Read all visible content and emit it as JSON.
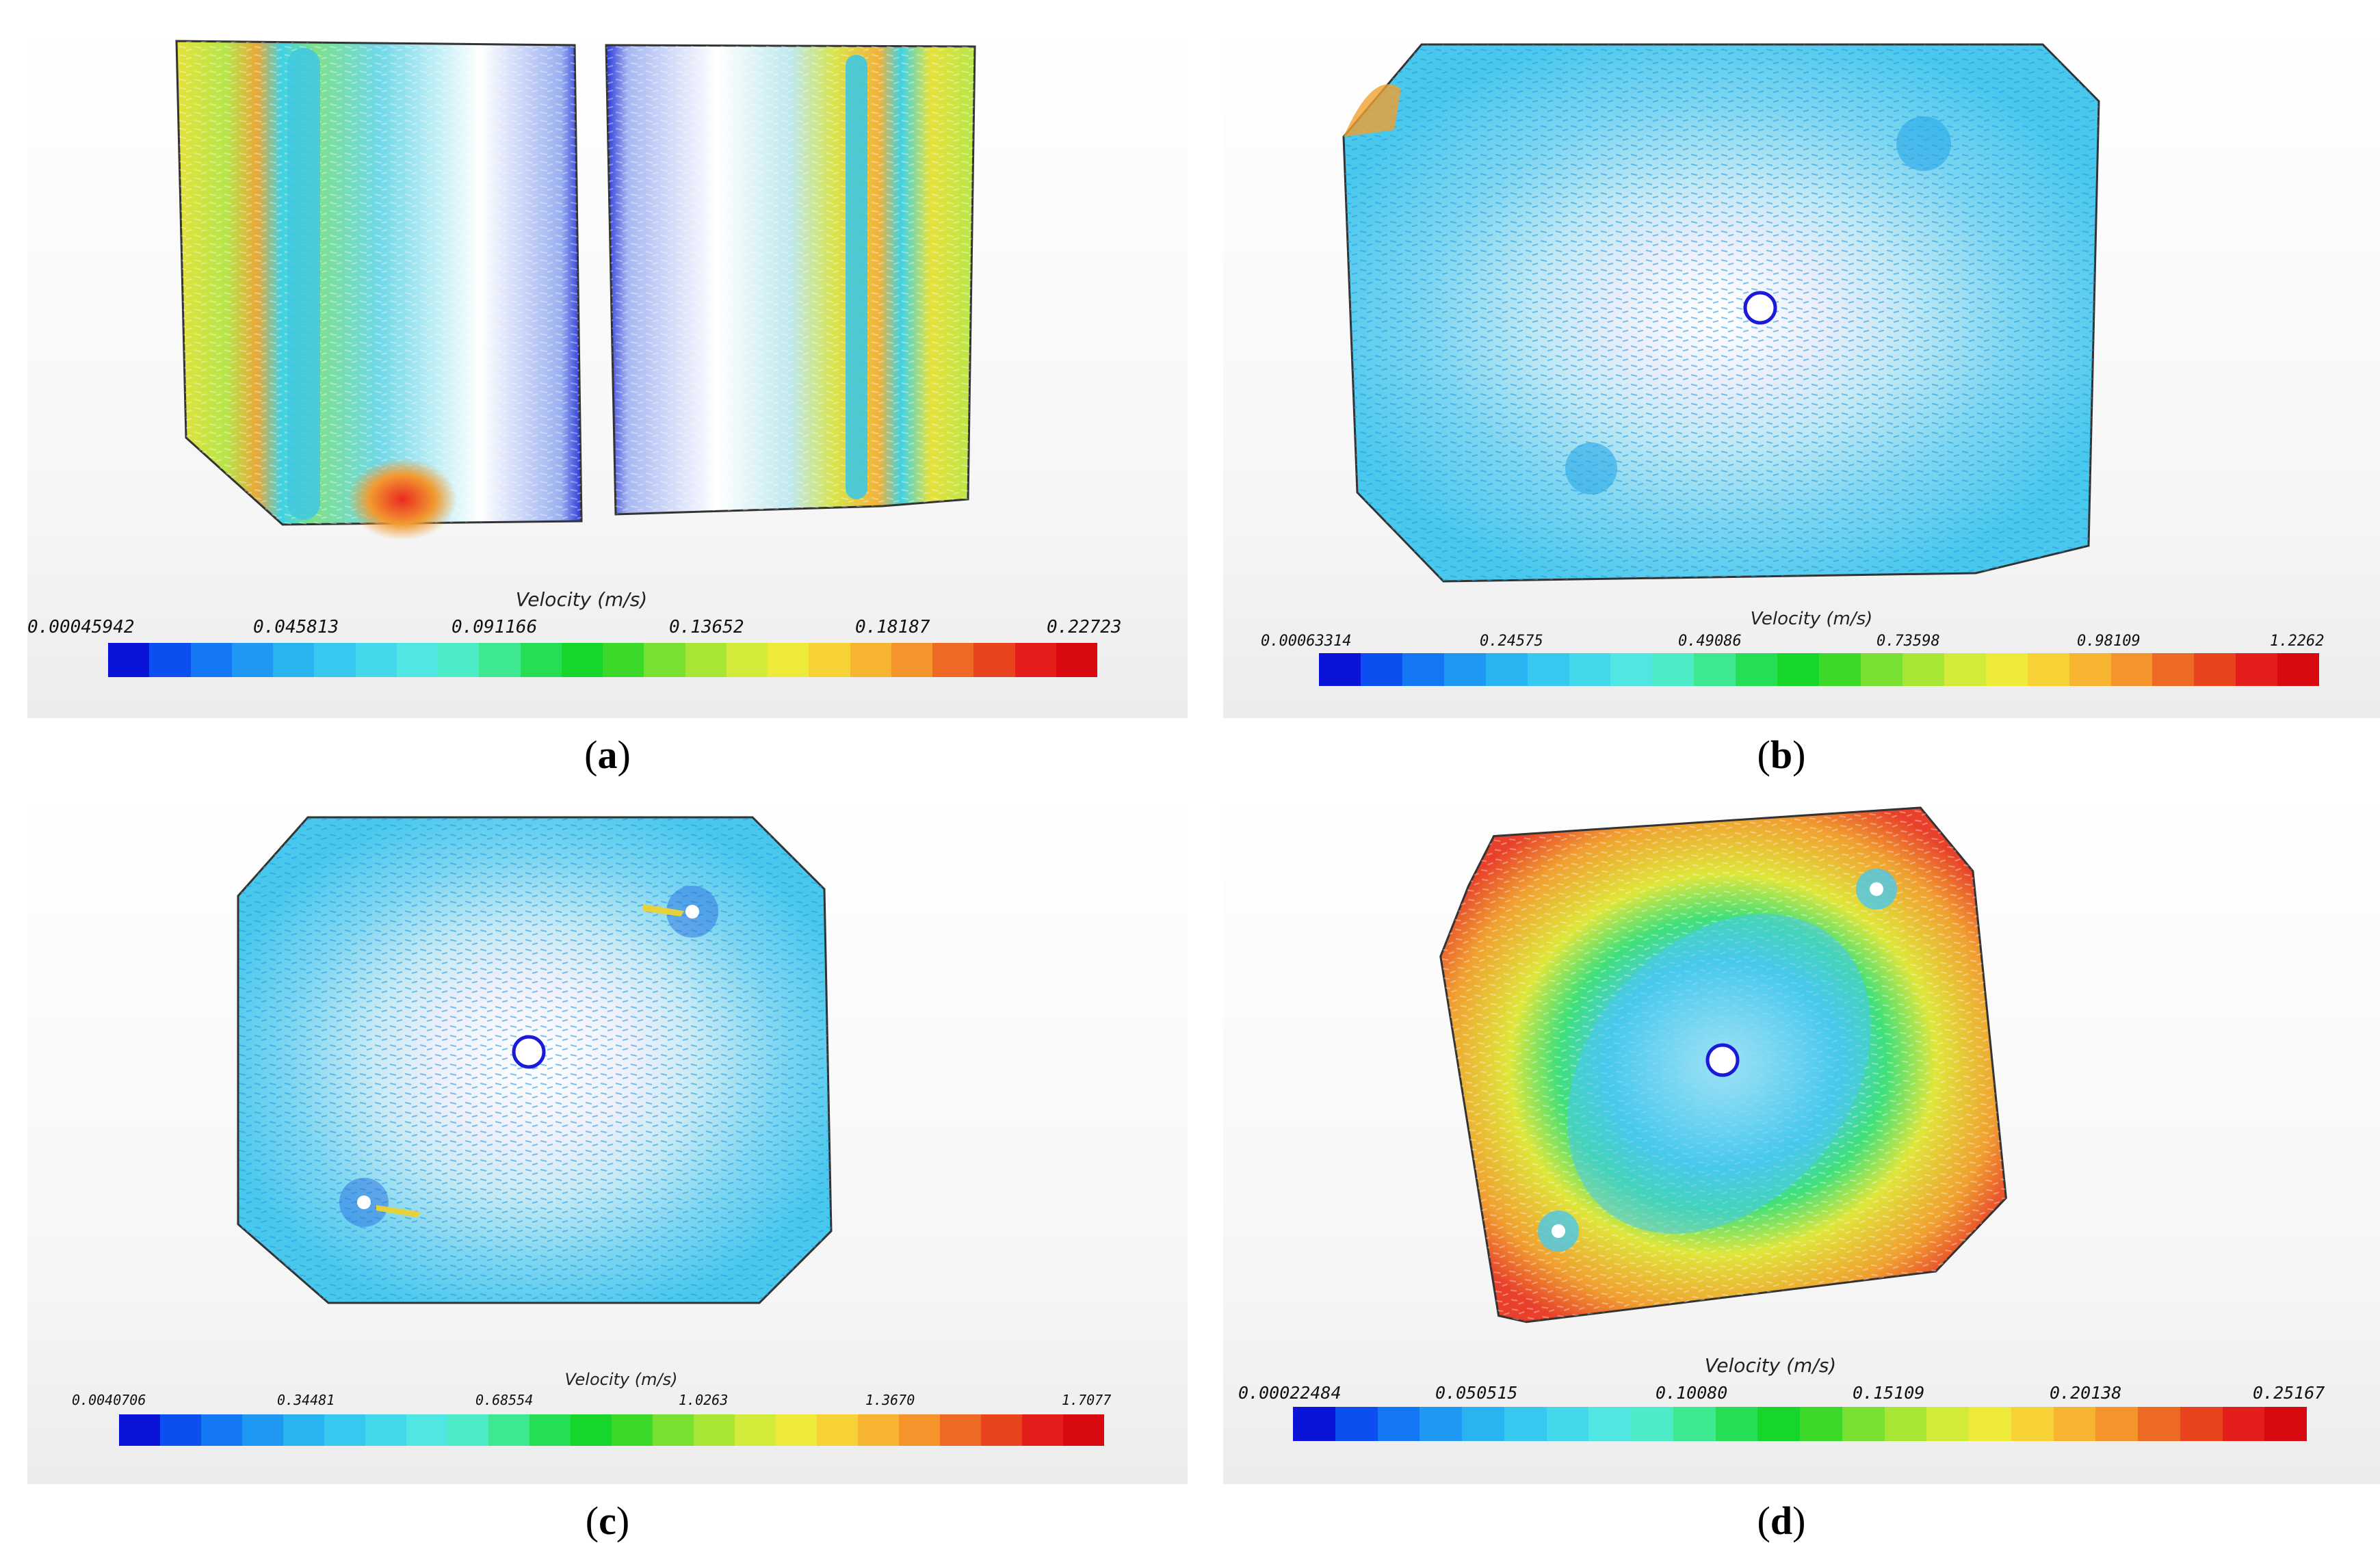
{
  "panels": [
    {
      "id": "a",
      "caption_letter": "a",
      "legend": {
        "title": "Velocity (m/s)",
        "ticks": [
          "0.00045942",
          "0.045813",
          "0.091166",
          "0.13652",
          "0.18187",
          "0.22723"
        ]
      },
      "field_colors": [
        "#3fd2e6",
        "#b7e64a",
        "#e6e23a",
        "#f2b23a",
        "#ea3a2a"
      ]
    },
    {
      "id": "b",
      "caption_letter": "b",
      "legend": {
        "title": "Velocity (m/s)",
        "ticks": [
          "0.00063314",
          "0.24575",
          "0.49086",
          "0.73598",
          "0.98109",
          "1.2262"
        ]
      },
      "field_colors": [
        "#49c8ee",
        "#1a1ad8"
      ]
    },
    {
      "id": "c",
      "caption_letter": "c",
      "legend": {
        "title": "Velocity (m/s)",
        "ticks": [
          "0.0040706",
          "0.34481",
          "0.68554",
          "1.0263",
          "1.3670",
          "1.7077"
        ]
      },
      "field_colors": [
        "#49c8ee",
        "#1a1ad8"
      ]
    },
    {
      "id": "d",
      "caption_letter": "d",
      "legend": {
        "title": "Velocity (m/s)",
        "ticks": [
          "0.00022484",
          "0.050515",
          "0.10080",
          "0.15109",
          "0.20138",
          "0.25167"
        ]
      },
      "field_colors": [
        "#49c8ee",
        "#3fe07a",
        "#dfe63a",
        "#f0a030",
        "#e8402a"
      ]
    }
  ],
  "colorbar_colors": [
    "#0a14d8",
    "#0c4ef0",
    "#1478f4",
    "#1e98f2",
    "#28b4f0",
    "#36c8ee",
    "#44d8ec",
    "#4fe6e4",
    "#4cecc8",
    "#3ee890",
    "#26de54",
    "#16d62c",
    "#3cd82a",
    "#78e030",
    "#a8e636",
    "#d2ea3a",
    "#eeea3a",
    "#f6d236",
    "#f6b430",
    "#f4942a",
    "#ee6a24",
    "#ea441e",
    "#e41e1a",
    "#d80a10"
  ]
}
